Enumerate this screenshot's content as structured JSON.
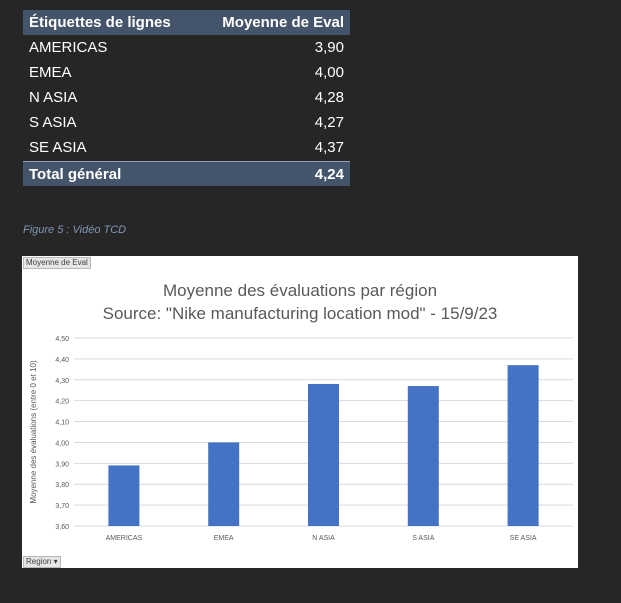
{
  "pivot": {
    "headers": [
      "Étiquettes de lignes",
      "Moyenne de Eval"
    ],
    "rows": [
      {
        "label": "AMERICAS",
        "value": "3,90"
      },
      {
        "label": "EMEA",
        "value": "4,00"
      },
      {
        "label": "N ASIA",
        "value": "4,28"
      },
      {
        "label": "S ASIA",
        "value": "4,27"
      },
      {
        "label": "SE ASIA",
        "value": "4,37"
      }
    ],
    "total": {
      "label": "Total général",
      "value": "4,24"
    },
    "header_color": "#44546a"
  },
  "caption": "Figure 5 : Vidéo TCD",
  "chart_panel": {
    "value_field_button": "Moyenne de Eval",
    "axis_field_button": "Region ▾"
  },
  "chart_data": {
    "type": "bar",
    "title": "Moyenne des évaluations par région",
    "subtitle": "Source: \"Nike manufacturing location mod\" - 15/9/23",
    "categories": [
      "AMERICAS",
      "EMEA",
      "N ASIA",
      "S ASIA",
      "SE ASIA"
    ],
    "values": [
      3.89,
      4.0,
      4.28,
      4.27,
      4.37
    ],
    "ylabel": "Moyenne des évaluations (entre 0 et 10)",
    "xlabel": "",
    "ylim": [
      3.6,
      4.5
    ],
    "yticks": [
      "3,60",
      "3,70",
      "3,80",
      "3,90",
      "4,00",
      "4,10",
      "4,20",
      "4,30",
      "4,40",
      "4,50"
    ],
    "grid": true,
    "bar_color": "#4472c4"
  }
}
